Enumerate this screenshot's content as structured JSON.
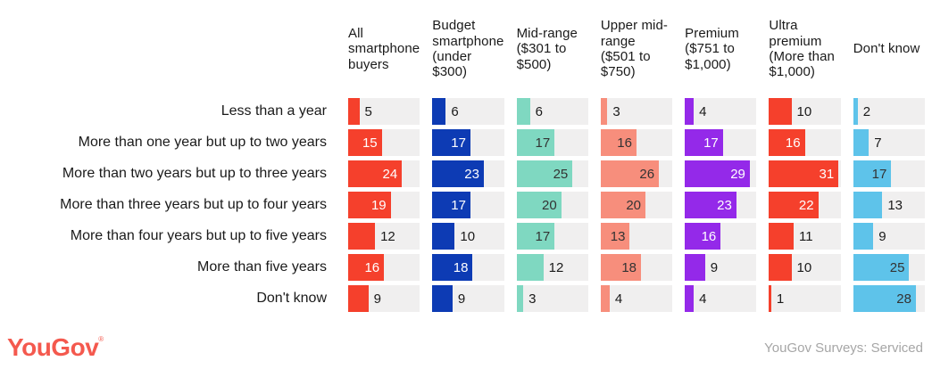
{
  "chart_data": {
    "type": "bar",
    "orientation": "horizontal",
    "title": "",
    "xlim": [
      0,
      32
    ],
    "track_color": "#f0efef",
    "outside_text_color": "#1a1a1a",
    "categories": [
      "Less than a year",
      "More than one year but up to two years",
      "More than two years but up to three years",
      "More than three years but up to four years",
      "More than four years but up to five years",
      "More than five years",
      "Don't know"
    ],
    "series": [
      {
        "name": "All smartphone buyers",
        "color": "#f5402c",
        "inside_text": "#ffffff",
        "values": [
          5,
          15,
          24,
          19,
          12,
          16,
          9
        ],
        "label_inside": [
          false,
          true,
          true,
          true,
          false,
          true,
          false
        ]
      },
      {
        "name": "Budget smartphone (under $300)",
        "color": "#0d3bb4",
        "inside_text": "#ffffff",
        "values": [
          6,
          17,
          23,
          17,
          10,
          18,
          9
        ],
        "label_inside": [
          false,
          true,
          true,
          true,
          false,
          true,
          false
        ]
      },
      {
        "name": "Mid-range ($301 to $500)",
        "color": "#7fd8c1",
        "inside_text": "#333333",
        "values": [
          6,
          17,
          25,
          20,
          17,
          12,
          3
        ],
        "label_inside": [
          false,
          true,
          true,
          true,
          true,
          false,
          false
        ]
      },
      {
        "name": "Upper mid-range ($501 to $750)",
        "color": "#f78e7c",
        "inside_text": "#333333",
        "values": [
          3,
          16,
          26,
          20,
          13,
          18,
          4
        ],
        "label_inside": [
          false,
          true,
          true,
          true,
          true,
          true,
          false
        ]
      },
      {
        "name": "Premium ($751 to $1,000)",
        "color": "#9429e9",
        "inside_text": "#ffffff",
        "values": [
          4,
          17,
          29,
          23,
          16,
          9,
          4
        ],
        "label_inside": [
          false,
          true,
          true,
          true,
          true,
          false,
          false
        ]
      },
      {
        "name": "Ultra premium (More than $1,000)",
        "color": "#f5402c",
        "inside_text": "#ffffff",
        "values": [
          10,
          16,
          31,
          22,
          11,
          10,
          1
        ],
        "label_inside": [
          false,
          true,
          true,
          true,
          false,
          false,
          false
        ]
      },
      {
        "name": "Don't know",
        "color": "#5ec3ea",
        "inside_text": "#333333",
        "values": [
          2,
          7,
          17,
          13,
          9,
          25,
          28
        ],
        "label_inside": [
          false,
          false,
          true,
          false,
          false,
          true,
          true
        ]
      }
    ]
  },
  "footer": {
    "logo_text": "YouGov",
    "registered_mark": "®",
    "logo_color": "#f4594e",
    "credit": "YouGov Surveys: Serviced",
    "credit_color": "#a6a6a6"
  }
}
